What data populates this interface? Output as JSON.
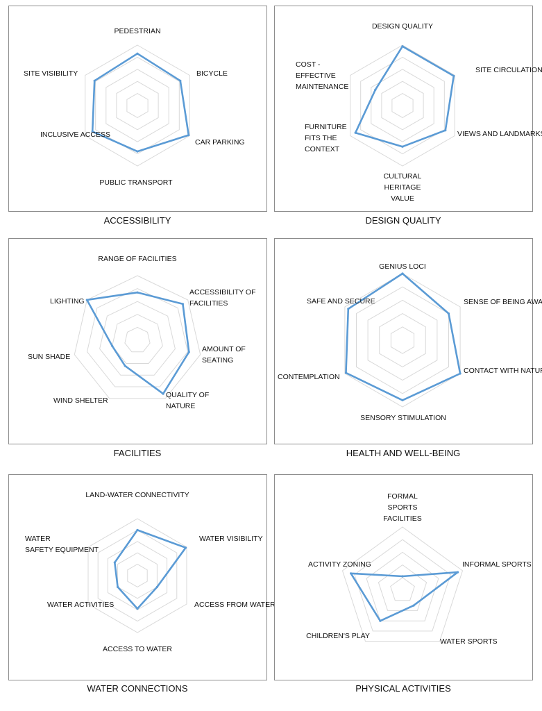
{
  "colors": {
    "series": "#5b9bd5",
    "grid": "#d9d9d9",
    "panel_border": "#8c8c8c",
    "text": "#111111"
  },
  "chart_data": [
    {
      "type": "radar",
      "title": "ACCESSIBILITY",
      "categories": [
        "PEDESTRIAN",
        "BICYCLE",
        "CAR PARKING",
        "PUBLIC TRANSPORT",
        "INCLUSIVE ACCESS",
        "SITE VISIBILITY"
      ],
      "levels": 5,
      "max": 5,
      "values": [
        4.3,
        4.1,
        4.9,
        3.8,
        4.3,
        4.1
      ]
    },
    {
      "type": "radar",
      "title": "DESIGN QUALITY",
      "categories": [
        "DESIGN QUALITY",
        "SITE CIRCULATION",
        "VIEWS AND LANDMARKS",
        "CULTURAL HERITAGE VALUE",
        "FURNITURE FITS THE CONTEXT",
        "COST - EFFECTIVE MAINTENANCE"
      ],
      "levels": 5,
      "max": 5,
      "values": [
        4.9,
        4.9,
        4.1,
        3.4,
        4.5,
        2.6
      ]
    },
    {
      "type": "radar",
      "title": "FACILITIES",
      "categories": [
        "RANGE OF FACILITIES",
        "ACCESSIBILITY OF FACILITIES",
        "AMOUNT OF SEATING",
        "QUALITY OF NATURE",
        "WIND SHELTER",
        "SUN SHADE",
        "LIGHTING"
      ],
      "levels": 5,
      "max": 5,
      "values": [
        3.7,
        4.5,
        4.1,
        4.6,
        2.2,
        2.0,
        5.0
      ]
    },
    {
      "type": "radar",
      "title": "HEALTH AND WELL-BEING",
      "categories": [
        "GENIUS LOCI",
        "SENSE OF BEING AWAY",
        "CONTACT WITH NATURE",
        "SENSORY STIMULATION",
        "CONTEMPLATION",
        "SAFE AND SECURE"
      ],
      "levels": 5,
      "max": 5,
      "values": [
        5.0,
        4.0,
        5.0,
        4.5,
        4.9,
        4.7
      ]
    },
    {
      "type": "radar",
      "title": "WATER CONNECTIONS",
      "categories": [
        "LAND-WATER CONNECTIVITY",
        "WATER VISIBILITY",
        "ACCESS FROM WATER",
        "ACCESS TO WATER",
        "WATER ACTIVITIES",
        "WATER SAFETY EQUIPMENT"
      ],
      "levels": 5,
      "max": 5,
      "values": [
        4.0,
        4.9,
        2.0,
        2.9,
        2.0,
        2.3
      ]
    },
    {
      "type": "radar",
      "title": "PHYSICAL ACTIVITIES",
      "categories": [
        "FORMAL SPORTS FACILITIES",
        "INFORMAL SPORTS",
        "WATER SPORTS",
        "CHILDREN'S PLAY",
        "ACTIVITY ZONING"
      ],
      "levels": 5,
      "max": 5,
      "values": [
        1.1,
        4.6,
        1.5,
        3.0,
        4.3
      ]
    }
  ]
}
